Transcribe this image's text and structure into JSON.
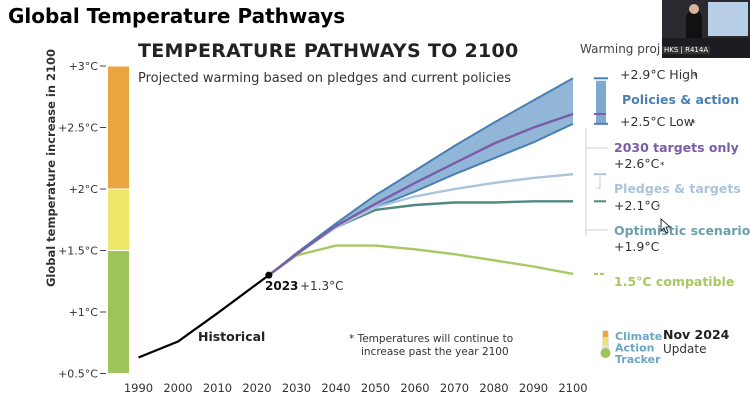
{
  "slide_title": "Global Temperature Pathways",
  "heading": "TEMPERATURE PATHWAYS TO 2100",
  "subtitle": "Projected warming based on pledges and current policies",
  "warming_label": "Warming proj",
  "camera_badge": "HKS | R414A",
  "footnote_line1": "*  Temperatures will continue to",
  "footnote_line2": "increase past the year 2100",
  "logo_lines": [
    "Climate",
    "Action",
    "Tracker"
  ],
  "date_line1": "Nov 2024",
  "date_line2": "Update",
  "colors": {
    "historical": "#000000",
    "policies_band": "#7fa9d1",
    "policies_line": "#4a7fb0",
    "targets_2030": "#7a5ca8",
    "pledges": "#a9c4dc",
    "optimistic": "#4e8a80",
    "compatible": "#a8c862",
    "bar_orange": "#e9a63f",
    "bar_yellow": "#ede86a",
    "bar_green": "#9dc55a"
  },
  "chart_data": {
    "type": "line",
    "title": "TEMPERATURE PATHWAYS TO 2100",
    "subtitle": "Projected warming based on pledges and current policies",
    "xlabel": "",
    "ylabel": "Global temperature increase in 2100",
    "xlim": [
      1985,
      2100
    ],
    "ylim": [
      0.5,
      3.0
    ],
    "x_ticks": [
      "1990",
      "2000",
      "2010",
      "2020",
      "2030",
      "2040",
      "2050",
      "2060",
      "2070",
      "2080",
      "2090",
      "2100"
    ],
    "y_ticks": [
      {
        "value": 3.0,
        "label": "+3°C"
      },
      {
        "value": 2.5,
        "label": "+2.5°C"
      },
      {
        "value": 2.0,
        "label": "+2°C"
      },
      {
        "value": 1.5,
        "label": "+1.5°C"
      },
      {
        "value": 1.0,
        "label": "+1°C"
      },
      {
        "value": 0.5,
        "label": "+0.5°C"
      }
    ],
    "color_bar": [
      {
        "from": 2.0,
        "to": 3.0,
        "color": "#e9a63f"
      },
      {
        "from": 1.5,
        "to": 2.0,
        "color": "#ede86a"
      },
      {
        "from": 0.5,
        "to": 1.5,
        "color": "#9dc55a"
      }
    ],
    "historical": {
      "name": "Historical",
      "x": [
        1990,
        2000,
        2010,
        2023
      ],
      "y": [
        0.63,
        0.76,
        0.99,
        1.3
      ]
    },
    "marker_2023": {
      "year": "2023",
      "label": "+1.3°C",
      "x": 2023,
      "y": 1.3
    },
    "policies_band": {
      "name": "Policies & action",
      "x": [
        2023,
        2030,
        2040,
        2050,
        2060,
        2070,
        2080,
        2090,
        2100
      ],
      "high": [
        1.3,
        1.48,
        1.72,
        1.95,
        2.15,
        2.35,
        2.54,
        2.72,
        2.9
      ],
      "low": [
        1.3,
        1.47,
        1.69,
        1.85,
        1.98,
        2.12,
        2.25,
        2.38,
        2.53
      ],
      "high_label": "+2.9°C High",
      "low_label": "+2.5°C Low",
      "marks": [
        "*",
        "*"
      ]
    },
    "series": [
      {
        "name": "2030 targets only",
        "value_label": "+2.6°C",
        "color": "#7a5ca8",
        "x": [
          2023,
          2030,
          2040,
          2050,
          2060,
          2070,
          2080,
          2090,
          2100
        ],
        "y": [
          1.3,
          1.47,
          1.7,
          1.88,
          2.05,
          2.21,
          2.37,
          2.5,
          2.61
        ]
      },
      {
        "name": "Pledges & targets",
        "value_label": "+2.1°C",
        "color": "#a9c4dc",
        "x": [
          2023,
          2030,
          2040,
          2050,
          2060,
          2070,
          2080,
          2090,
          2100
        ],
        "y": [
          1.3,
          1.47,
          1.69,
          1.85,
          1.94,
          2.0,
          2.05,
          2.09,
          2.12
        ]
      },
      {
        "name": "Optimistic scenario",
        "value_label": "+1.9°C",
        "color": "#4e8a80",
        "x": [
          2023,
          2030,
          2040,
          2050,
          2060,
          2070,
          2080,
          2090,
          2100
        ],
        "y": [
          1.3,
          1.47,
          1.69,
          1.83,
          1.87,
          1.89,
          1.89,
          1.9,
          1.9
        ]
      },
      {
        "name": "1.5°C compatible",
        "value_label": "",
        "color": "#a8c862",
        "x": [
          2023,
          2030,
          2040,
          2050,
          2060,
          2070,
          2080,
          2090,
          2100
        ],
        "y": [
          1.3,
          1.46,
          1.54,
          1.54,
          1.51,
          1.47,
          1.42,
          1.37,
          1.31
        ]
      }
    ],
    "annotations": [
      "*",
      "*"
    ]
  }
}
